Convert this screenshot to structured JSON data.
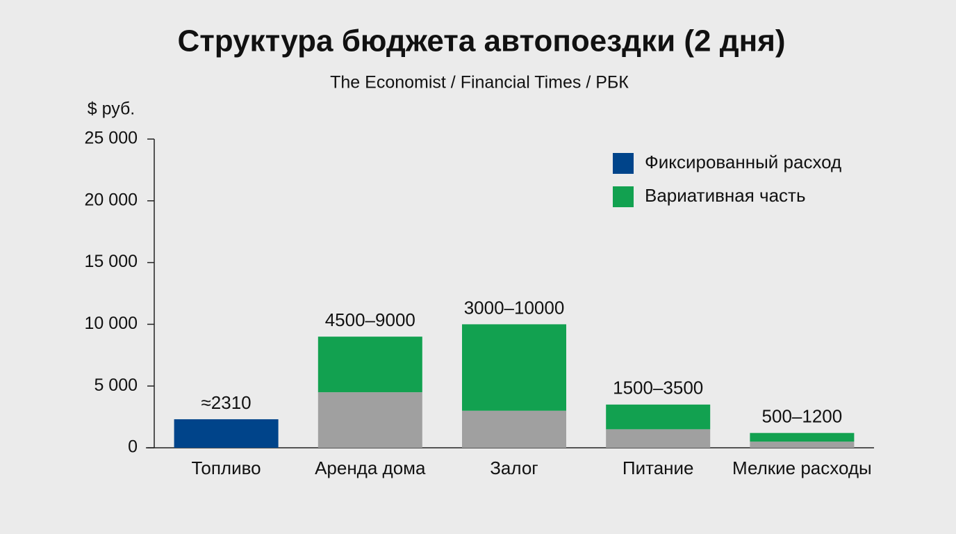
{
  "chart_data": {
    "type": "stacked_bar",
    "title": "Структура бюджета автопоездки (2 дня)",
    "subtitle": "The Economist / Financial Times / РБК",
    "y_label": "$ руб.",
    "categories": [
      "Топливо",
      "Аренда дома",
      "Залог",
      "Питание",
      "Мелкие расходы"
    ],
    "series": [
      {
        "name": "Фиксированный расход",
        "color": "#00448a",
        "values": [
          2310,
          null,
          null,
          null,
          null
        ],
        "value_labels": [
          "≈2310",
          null,
          null,
          null,
          null
        ]
      },
      {
        "color": "#a0a0a0",
        "values": [
          null,
          4500,
          3000,
          1500,
          500
        ],
        "value_labels": [
          null,
          "4500–9000",
          "3000–10000",
          "1500–3500",
          "500–1200"
        ]
      },
      {
        "name": "Вариативная часть",
        "color": "#12a150",
        "values": [
          null,
          4500,
          7000,
          2000,
          700
        ]
      }
    ],
    "ylim": [
      0,
      25000
    ],
    "yticks": [
      0,
      {
        "value": 5000,
        "label": "5 000"
      },
      {
        "value": 10000,
        "label": "10 000"
      },
      {
        "value": 15000,
        "label": "15 000"
      },
      {
        "value": 20000,
        "label": "20 000"
      },
      {
        "value": 25000,
        "label": "25 000"
      }
    ],
    "legend": "top-right"
  }
}
